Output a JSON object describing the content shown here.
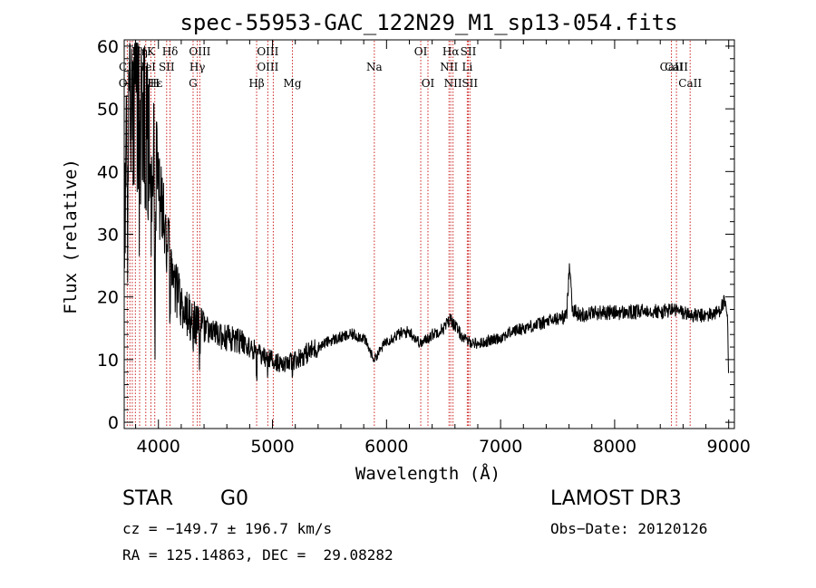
{
  "chart_data": {
    "type": "line",
    "title": "spec-55953-GAC_122N29_M1_sp13-054.fits",
    "xlabel": "Wavelength (Å)",
    "ylabel": "Flux (relative)",
    "xlim": [
      3700,
      9050
    ],
    "ylim": [
      -1,
      61
    ],
    "xticks": [
      4000,
      5000,
      6000,
      7000,
      8000,
      9000
    ],
    "yticks": [
      0,
      10,
      20,
      30,
      40,
      50,
      60
    ],
    "series": [
      {
        "name": "flux",
        "anchors_x": [
          3700,
          3720,
          3760,
          3800,
          3840,
          3880,
          3920,
          3960,
          4000,
          4040,
          4100,
          4150,
          4200,
          4300,
          4400,
          4500,
          4600,
          4700,
          4800,
          4900,
          5000,
          5100,
          5200,
          5300,
          5400,
          5500,
          5600,
          5700,
          5800,
          5890,
          6000,
          6100,
          6200,
          6300,
          6400,
          6500,
          6563,
          6650,
          6700,
          6800,
          6900,
          7000,
          7100,
          7200,
          7300,
          7400,
          7500,
          7580,
          7605,
          7630,
          7700,
          7800,
          7900,
          8000,
          8100,
          8200,
          8300,
          8400,
          8500,
          8600,
          8700,
          8800,
          8900,
          8960,
          8990,
          9000
        ],
        "anchors_y": [
          30,
          45,
          50,
          52,
          48,
          47,
          44,
          40,
          36,
          32,
          26,
          22,
          19,
          16,
          15,
          14,
          13.5,
          13,
          12,
          10.5,
          10,
          9,
          10,
          11,
          12,
          13,
          13.5,
          14,
          13.5,
          10,
          13,
          14,
          14.5,
          12.5,
          14,
          15,
          16.5,
          14,
          13,
          12.5,
          13,
          13.5,
          14.5,
          15,
          15.5,
          16,
          16.5,
          17,
          26,
          18,
          17,
          17.5,
          17.5,
          17.5,
          17.5,
          17.5,
          18,
          17.5,
          18,
          17.5,
          17,
          17,
          17.5,
          19,
          17,
          5
        ],
        "noise_seed": 55953
      }
    ],
    "lines_row1": [
      {
        "label": "Hη",
        "x": 3835
      },
      {
        "label": "K",
        "x": 3934
      },
      {
        "label": "Hδ",
        "x": 4102
      },
      {
        "label": "OIII",
        "x": 4363
      },
      {
        "label": "OIII",
        "x": 4959
      },
      {
        "label": "OI",
        "x": 6300
      },
      {
        "label": "Hα",
        "x": 6563
      },
      {
        "label": "SII",
        "x": 6717
      }
    ],
    "lines_row2": [
      {
        "label": "CII",
        "x": 3727
      },
      {
        "label": "HeI",
        "x": 3889
      },
      {
        "label": "SII",
        "x": 4072
      },
      {
        "label": "Hγ",
        "x": 4341
      },
      {
        "label": "OIII",
        "x": 4959
      },
      {
        "label": "Na",
        "x": 5893
      },
      {
        "label": "NII",
        "x": 6548
      },
      {
        "label": "Li",
        "x": 6708
      },
      {
        "label": "CaII",
        "x": 8498
      },
      {
        "label": "CaII",
        "x": 8542
      }
    ],
    "lines_row3": [
      {
        "label": "OII",
        "x": 3727
      },
      {
        "label": "Hε",
        "x": 3970
      },
      {
        "label": "H",
        "x": 3968
      },
      {
        "label": "G",
        "x": 4304
      },
      {
        "label": "Hβ",
        "x": 4861
      },
      {
        "label": "Mg",
        "x": 5175
      },
      {
        "label": "OI",
        "x": 6363
      },
      {
        "label": "NII",
        "x": 6583
      },
      {
        "label": "SII",
        "x": 6731
      },
      {
        "label": "CaII",
        "x": 8662
      }
    ],
    "line_markers": [
      3727,
      3750,
      3771,
      3798,
      3835,
      3889,
      3934,
      3968,
      4072,
      4102,
      4304,
      4341,
      4363,
      4861,
      4959,
      5007,
      5175,
      5893,
      6300,
      6363,
      6548,
      6563,
      6583,
      6708,
      6717,
      6731,
      8498,
      8542,
      8662
    ]
  },
  "info": {
    "class": "STAR",
    "subclass": "G0",
    "survey": "LAMOST DR3",
    "cz": "cz = −149.7 ± 196.7 km/s",
    "obs_date": "Obs−Date: 20120126",
    "coords": "RA = 125.14863, DEC =  29.08282"
  },
  "colors": {
    "axis": "#000000",
    "flux": "#000000",
    "marker": "#cc2222"
  }
}
